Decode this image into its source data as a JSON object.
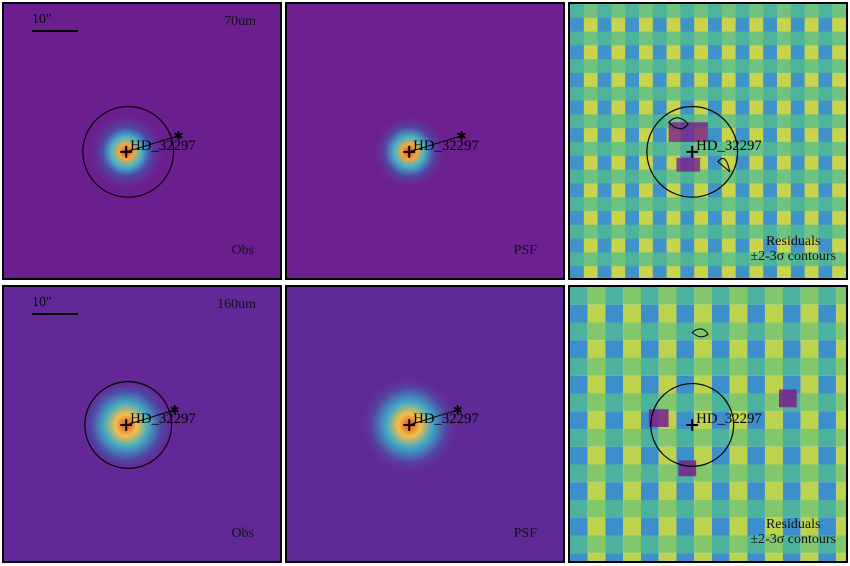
{
  "panels": {
    "p70_obs": {
      "band": "70um",
      "label": "Obs",
      "source": "HD_32297",
      "scale": "10\""
    },
    "p70_psf": {
      "label": "PSF",
      "source": "HD_32297"
    },
    "p70_res": {
      "label_line1": "Residuals",
      "label_line2": "±2-3σ contours",
      "source": "HD_32297"
    },
    "p160_obs": {
      "band": "160um",
      "label": "Obs",
      "source": "HD_32297",
      "scale": "10\""
    },
    "p160_psf": {
      "label": "PSF",
      "source": "HD_32297"
    },
    "p160_res": {
      "label_line1": "Residuals",
      "label_line2": "±2-3σ contours",
      "source": "HD_32297"
    }
  },
  "colors": {
    "background": "#6b1f8f",
    "core": "#e94a28",
    "mid": "#f2b84b",
    "halo": "#3fa9c7",
    "residual_low": "#44b3a1",
    "residual_high": "#d6d84a"
  }
}
